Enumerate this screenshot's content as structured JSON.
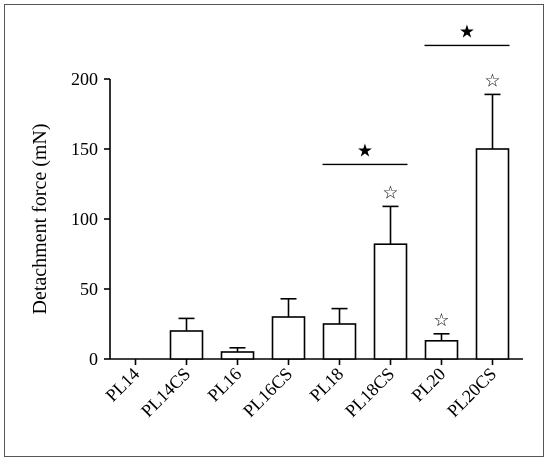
{
  "chart_data": {
    "type": "bar",
    "ylabel": "Detachment force (mN)",
    "xlabel": "",
    "title": "",
    "ylim": [
      0,
      200
    ],
    "yticks": [
      0,
      50,
      100,
      150,
      200
    ],
    "categories": [
      "PL14",
      "PL14CS",
      "PL16",
      "PL16CS",
      "PL18",
      "PL18CS",
      "PL20",
      "PL20CS"
    ],
    "values": [
      0,
      20,
      5,
      30,
      25,
      82,
      13,
      150
    ],
    "errors": [
      0,
      9,
      3,
      13,
      11,
      27,
      5,
      39
    ],
    "markers": [
      "",
      "",
      "",
      "",
      "",
      "☆",
      "☆",
      "☆"
    ],
    "significance": [
      {
        "from": 4,
        "to": 5,
        "y": 139,
        "symbol": "★"
      },
      {
        "from": 6,
        "to": 7,
        "y": 224,
        "symbol": "★"
      }
    ],
    "grid": false,
    "legend": "none"
  }
}
